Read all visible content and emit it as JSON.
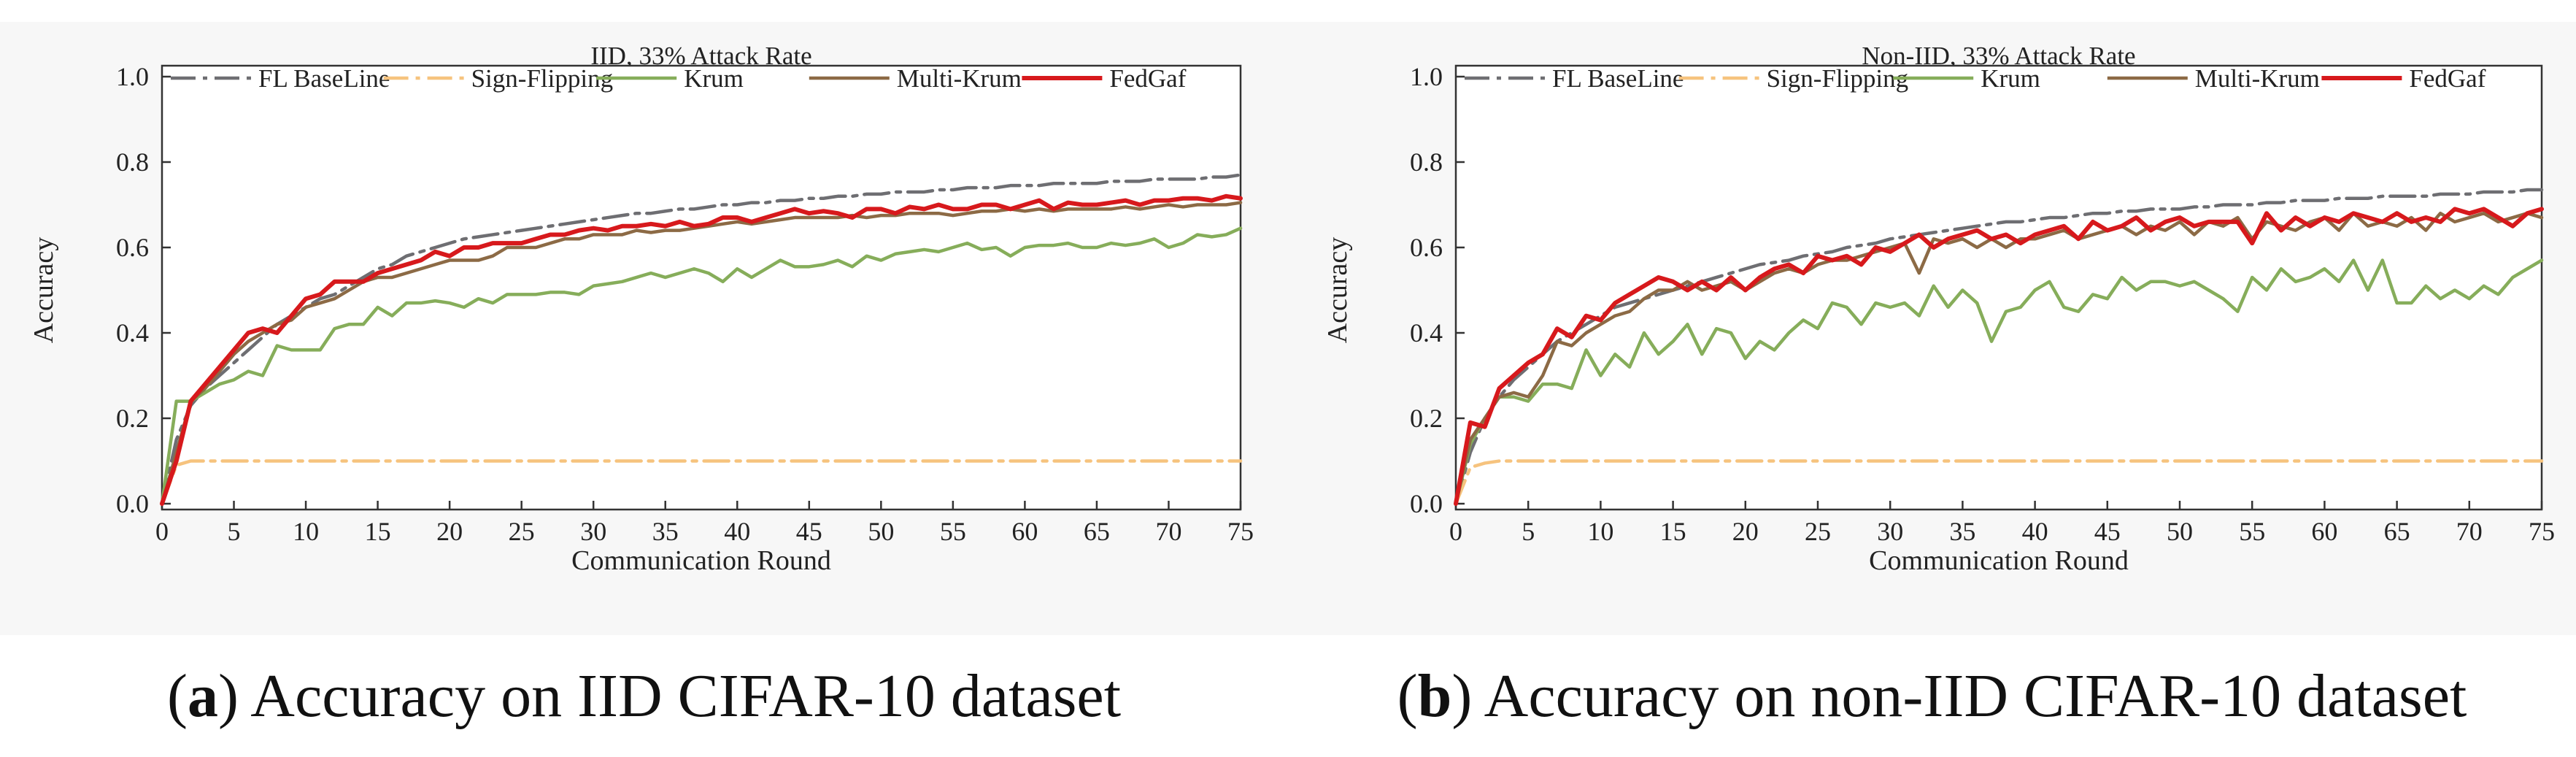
{
  "figure": {
    "captions": [
      {
        "letter": "a",
        "text": "Accuracy on IID CIFAR-10 dataset"
      },
      {
        "letter": "b",
        "text": "Accuracy on non-IID CIFAR-10 dataset"
      }
    ]
  },
  "series_style": {
    "FL BaseLine": {
      "color": "#6e6e72",
      "dash": "dashdot"
    },
    "Sign-Flipping": {
      "color": "#f6c37e",
      "dash": "dashdot"
    },
    "Krum": {
      "color": "#86ad5a",
      "dash": "solid"
    },
    "Multi-Krum": {
      "color": "#8c6a45",
      "dash": "solid"
    },
    "FedGaf": {
      "color": "#d7191c",
      "dash": "solid"
    }
  },
  "chart_data": [
    {
      "type": "line",
      "title": "IID, 33% Attack Rate",
      "xlabel": "Communication Round",
      "ylabel": "Accuracy",
      "xlim": [
        0,
        75
      ],
      "ylim": [
        0,
        1.0
      ],
      "xticks": [
        0,
        5,
        10,
        15,
        20,
        25,
        30,
        35,
        40,
        45,
        50,
        55,
        60,
        65,
        70,
        75
      ],
      "yticks": [
        "0.0",
        "0.2",
        "0.4",
        "0.6",
        "0.8",
        "1.0"
      ],
      "legend": "top",
      "grid": false,
      "x_step": 1,
      "series": [
        {
          "name": "FL BaseLine",
          "values": [
            0.0,
            0.15,
            0.23,
            0.27,
            0.3,
            0.33,
            0.36,
            0.39,
            0.42,
            0.44,
            0.46,
            0.48,
            0.49,
            0.51,
            0.53,
            0.55,
            0.56,
            0.58,
            0.59,
            0.6,
            0.61,
            0.62,
            0.625,
            0.63,
            0.635,
            0.64,
            0.645,
            0.65,
            0.655,
            0.66,
            0.665,
            0.67,
            0.675,
            0.68,
            0.68,
            0.685,
            0.69,
            0.69,
            0.695,
            0.7,
            0.7,
            0.705,
            0.705,
            0.71,
            0.71,
            0.715,
            0.715,
            0.72,
            0.72,
            0.725,
            0.725,
            0.73,
            0.73,
            0.73,
            0.735,
            0.735,
            0.74,
            0.74,
            0.74,
            0.745,
            0.745,
            0.745,
            0.75,
            0.75,
            0.75,
            0.75,
            0.755,
            0.755,
            0.755,
            0.76,
            0.76,
            0.76,
            0.76,
            0.765,
            0.765,
            0.77
          ]
        },
        {
          "name": "Sign-Flipping",
          "values": [
            0.0,
            0.09,
            0.1,
            0.1,
            0.1,
            0.1,
            0.1,
            0.1,
            0.1,
            0.1,
            0.1,
            0.1,
            0.1,
            0.1,
            0.1,
            0.1,
            0.1,
            0.1,
            0.1,
            0.1,
            0.1,
            0.1,
            0.1,
            0.1,
            0.1,
            0.1,
            0.1,
            0.1,
            0.1,
            0.1,
            0.1,
            0.1,
            0.1,
            0.1,
            0.1,
            0.1,
            0.1,
            0.1,
            0.1,
            0.1,
            0.1,
            0.1,
            0.1,
            0.1,
            0.1,
            0.1,
            0.1,
            0.1,
            0.1,
            0.1,
            0.1,
            0.1,
            0.1,
            0.1,
            0.1,
            0.1,
            0.1,
            0.1,
            0.1,
            0.1,
            0.1,
            0.1,
            0.1,
            0.1,
            0.1,
            0.1,
            0.1,
            0.1,
            0.1,
            0.1,
            0.1,
            0.1,
            0.1,
            0.1,
            0.1,
            0.1
          ]
        },
        {
          "name": "Krum",
          "values": [
            0.0,
            0.24,
            0.24,
            0.26,
            0.28,
            0.29,
            0.31,
            0.3,
            0.37,
            0.36,
            0.36,
            0.36,
            0.41,
            0.42,
            0.42,
            0.46,
            0.44,
            0.47,
            0.47,
            0.475,
            0.47,
            0.46,
            0.48,
            0.47,
            0.49,
            0.49,
            0.49,
            0.495,
            0.495,
            0.49,
            0.51,
            0.515,
            0.52,
            0.53,
            0.54,
            0.53,
            0.54,
            0.55,
            0.54,
            0.52,
            0.55,
            0.53,
            0.55,
            0.57,
            0.555,
            0.555,
            0.56,
            0.57,
            0.555,
            0.58,
            0.57,
            0.585,
            0.59,
            0.595,
            0.59,
            0.6,
            0.61,
            0.595,
            0.6,
            0.58,
            0.6,
            0.605,
            0.605,
            0.61,
            0.6,
            0.6,
            0.61,
            0.605,
            0.61,
            0.62,
            0.6,
            0.61,
            0.63,
            0.625,
            0.63,
            0.645
          ]
        },
        {
          "name": "Multi-Krum",
          "values": [
            0.0,
            0.12,
            0.24,
            0.27,
            0.31,
            0.35,
            0.38,
            0.4,
            0.42,
            0.43,
            0.46,
            0.47,
            0.48,
            0.5,
            0.52,
            0.53,
            0.53,
            0.54,
            0.55,
            0.56,
            0.57,
            0.57,
            0.57,
            0.58,
            0.6,
            0.6,
            0.6,
            0.61,
            0.62,
            0.62,
            0.63,
            0.63,
            0.63,
            0.64,
            0.635,
            0.64,
            0.64,
            0.645,
            0.65,
            0.655,
            0.66,
            0.655,
            0.66,
            0.665,
            0.67,
            0.67,
            0.67,
            0.67,
            0.675,
            0.67,
            0.675,
            0.675,
            0.68,
            0.68,
            0.68,
            0.675,
            0.68,
            0.685,
            0.685,
            0.69,
            0.685,
            0.69,
            0.685,
            0.69,
            0.69,
            0.69,
            0.69,
            0.695,
            0.69,
            0.695,
            0.7,
            0.695,
            0.7,
            0.7,
            0.7,
            0.705
          ]
        },
        {
          "name": "FedGaf",
          "values": [
            0.0,
            0.1,
            0.24,
            0.28,
            0.32,
            0.36,
            0.4,
            0.41,
            0.4,
            0.44,
            0.48,
            0.49,
            0.52,
            0.52,
            0.52,
            0.54,
            0.55,
            0.56,
            0.57,
            0.59,
            0.58,
            0.6,
            0.6,
            0.61,
            0.61,
            0.61,
            0.62,
            0.63,
            0.63,
            0.64,
            0.645,
            0.64,
            0.65,
            0.65,
            0.655,
            0.65,
            0.66,
            0.65,
            0.655,
            0.67,
            0.67,
            0.66,
            0.67,
            0.68,
            0.69,
            0.68,
            0.685,
            0.68,
            0.67,
            0.69,
            0.69,
            0.68,
            0.695,
            0.69,
            0.7,
            0.69,
            0.69,
            0.7,
            0.7,
            0.69,
            0.7,
            0.71,
            0.69,
            0.705,
            0.7,
            0.7,
            0.705,
            0.71,
            0.7,
            0.71,
            0.71,
            0.715,
            0.715,
            0.71,
            0.72,
            0.715
          ]
        }
      ]
    },
    {
      "type": "line",
      "title": "Non-IID, 33% Attack Rate",
      "xlabel": "Communication Round",
      "ylabel": "Accuracy",
      "xlim": [
        0,
        75
      ],
      "ylim": [
        0,
        1.0
      ],
      "xticks": [
        0,
        5,
        10,
        15,
        20,
        25,
        30,
        35,
        40,
        45,
        50,
        55,
        60,
        65,
        70,
        75
      ],
      "yticks": [
        "0.0",
        "0.2",
        "0.4",
        "0.6",
        "0.8",
        "1.0"
      ],
      "legend": "top",
      "grid": false,
      "x_step": 1,
      "series": [
        {
          "name": "FL BaseLine",
          "values": [
            0.0,
            0.12,
            0.2,
            0.25,
            0.29,
            0.32,
            0.35,
            0.38,
            0.4,
            0.42,
            0.44,
            0.46,
            0.47,
            0.48,
            0.49,
            0.5,
            0.51,
            0.52,
            0.53,
            0.54,
            0.55,
            0.56,
            0.565,
            0.57,
            0.58,
            0.585,
            0.59,
            0.6,
            0.605,
            0.61,
            0.62,
            0.625,
            0.63,
            0.635,
            0.64,
            0.645,
            0.65,
            0.655,
            0.66,
            0.66,
            0.665,
            0.67,
            0.67,
            0.675,
            0.68,
            0.68,
            0.685,
            0.685,
            0.69,
            0.69,
            0.69,
            0.695,
            0.695,
            0.7,
            0.7,
            0.7,
            0.705,
            0.705,
            0.71,
            0.71,
            0.71,
            0.715,
            0.715,
            0.715,
            0.72,
            0.72,
            0.72,
            0.72,
            0.725,
            0.725,
            0.725,
            0.73,
            0.73,
            0.73,
            0.735,
            0.735
          ]
        },
        {
          "name": "Sign-Flipping",
          "values": [
            0.0,
            0.085,
            0.095,
            0.1,
            0.1,
            0.1,
            0.1,
            0.1,
            0.1,
            0.1,
            0.1,
            0.1,
            0.1,
            0.1,
            0.1,
            0.1,
            0.1,
            0.1,
            0.1,
            0.1,
            0.1,
            0.1,
            0.1,
            0.1,
            0.1,
            0.1,
            0.1,
            0.1,
            0.1,
            0.1,
            0.1,
            0.1,
            0.1,
            0.1,
            0.1,
            0.1,
            0.1,
            0.1,
            0.1,
            0.1,
            0.1,
            0.1,
            0.1,
            0.1,
            0.1,
            0.1,
            0.1,
            0.1,
            0.1,
            0.1,
            0.1,
            0.1,
            0.1,
            0.1,
            0.1,
            0.1,
            0.1,
            0.1,
            0.1,
            0.1,
            0.1,
            0.1,
            0.1,
            0.1,
            0.1,
            0.1,
            0.1,
            0.1,
            0.1,
            0.1,
            0.1,
            0.1,
            0.1,
            0.1,
            0.1,
            0.1
          ]
        },
        {
          "name": "Krum",
          "values": [
            0.0,
            0.14,
            0.2,
            0.25,
            0.25,
            0.24,
            0.28,
            0.28,
            0.27,
            0.36,
            0.3,
            0.35,
            0.32,
            0.4,
            0.35,
            0.38,
            0.42,
            0.35,
            0.41,
            0.4,
            0.34,
            0.38,
            0.36,
            0.4,
            0.43,
            0.41,
            0.47,
            0.46,
            0.42,
            0.47,
            0.46,
            0.47,
            0.44,
            0.51,
            0.46,
            0.5,
            0.47,
            0.38,
            0.45,
            0.46,
            0.5,
            0.52,
            0.46,
            0.45,
            0.49,
            0.48,
            0.53,
            0.5,
            0.52,
            0.52,
            0.51,
            0.52,
            0.5,
            0.48,
            0.45,
            0.53,
            0.5,
            0.55,
            0.52,
            0.53,
            0.55,
            0.52,
            0.57,
            0.5,
            0.57,
            0.47,
            0.47,
            0.51,
            0.48,
            0.5,
            0.48,
            0.51,
            0.49,
            0.53,
            0.55,
            0.57
          ]
        },
        {
          "name": "Multi-Krum",
          "values": [
            0.0,
            0.15,
            0.2,
            0.25,
            0.26,
            0.25,
            0.3,
            0.38,
            0.37,
            0.4,
            0.42,
            0.44,
            0.45,
            0.48,
            0.5,
            0.5,
            0.52,
            0.5,
            0.51,
            0.52,
            0.5,
            0.52,
            0.54,
            0.55,
            0.54,
            0.56,
            0.57,
            0.57,
            0.58,
            0.59,
            0.6,
            0.61,
            0.54,
            0.62,
            0.61,
            0.62,
            0.6,
            0.62,
            0.6,
            0.62,
            0.62,
            0.63,
            0.64,
            0.62,
            0.63,
            0.64,
            0.65,
            0.63,
            0.65,
            0.64,
            0.66,
            0.63,
            0.66,
            0.65,
            0.67,
            0.62,
            0.66,
            0.65,
            0.64,
            0.66,
            0.67,
            0.64,
            0.68,
            0.65,
            0.66,
            0.65,
            0.67,
            0.64,
            0.68,
            0.66,
            0.67,
            0.68,
            0.66,
            0.67,
            0.68,
            0.67
          ]
        },
        {
          "name": "FedGaf",
          "values": [
            0.0,
            0.19,
            0.18,
            0.27,
            0.3,
            0.33,
            0.35,
            0.41,
            0.39,
            0.44,
            0.43,
            0.47,
            0.49,
            0.51,
            0.53,
            0.52,
            0.5,
            0.52,
            0.5,
            0.53,
            0.5,
            0.53,
            0.55,
            0.56,
            0.54,
            0.58,
            0.57,
            0.58,
            0.56,
            0.6,
            0.59,
            0.61,
            0.63,
            0.6,
            0.62,
            0.63,
            0.64,
            0.62,
            0.63,
            0.61,
            0.63,
            0.64,
            0.65,
            0.62,
            0.66,
            0.64,
            0.65,
            0.67,
            0.64,
            0.66,
            0.67,
            0.65,
            0.66,
            0.66,
            0.66,
            0.61,
            0.68,
            0.64,
            0.67,
            0.65,
            0.67,
            0.66,
            0.68,
            0.67,
            0.66,
            0.68,
            0.66,
            0.67,
            0.66,
            0.69,
            0.68,
            0.69,
            0.67,
            0.65,
            0.68,
            0.69
          ]
        }
      ]
    }
  ]
}
